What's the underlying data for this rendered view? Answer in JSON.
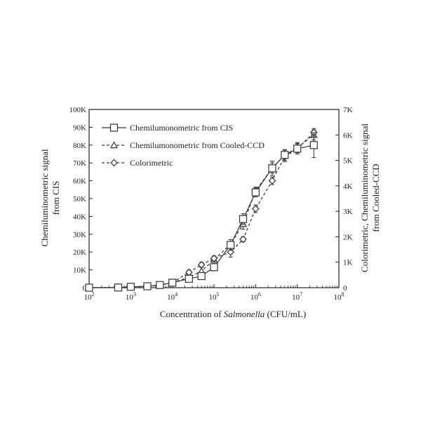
{
  "chart_data": {
    "type": "line",
    "xlabel_prefix": "Concentration of ",
    "xlabel_italic": "Salmonella",
    "xlabel_suffix": " (CFU/mL)",
    "ylabel_left_line1": "Chemiluminometric signal",
    "ylabel_left_line2": "from CIS",
    "ylabel_right_line1": "Colorimetric, Chemiluminometric signal",
    "ylabel_right_line2": "from Cooled-CCD",
    "x_scale": "log",
    "xlim": [
      100,
      100000000
    ],
    "x_ticks": [
      {
        "value": 100,
        "base": "10",
        "exp": "2"
      },
      {
        "value": 1000,
        "base": "10",
        "exp": "3"
      },
      {
        "value": 10000,
        "base": "10",
        "exp": "4"
      },
      {
        "value": 100000,
        "base": "10",
        "exp": "5"
      },
      {
        "value": 1000000,
        "base": "10",
        "exp": "6"
      },
      {
        "value": 10000000,
        "base": "10",
        "exp": "7"
      },
      {
        "value": 100000000,
        "base": "10",
        "exp": "8"
      }
    ],
    "ylim_left": [
      0,
      100000
    ],
    "y_left_ticks": [
      {
        "value": 0,
        "label": "0"
      },
      {
        "value": 10000,
        "label": "10K"
      },
      {
        "value": 20000,
        "label": "20K"
      },
      {
        "value": 30000,
        "label": "30K"
      },
      {
        "value": 40000,
        "label": "40K"
      },
      {
        "value": 50000,
        "label": "50K"
      },
      {
        "value": 60000,
        "label": "60K"
      },
      {
        "value": 70000,
        "label": "70K"
      },
      {
        "value": 80000,
        "label": "80K"
      },
      {
        "value": 90000,
        "label": "90K"
      },
      {
        "value": 100000,
        "label": "100K"
      }
    ],
    "ylim_right": [
      0,
      7000
    ],
    "y_right_ticks": [
      {
        "value": 0,
        "label": "0"
      },
      {
        "value": 1000,
        "label": "1K"
      },
      {
        "value": 2000,
        "label": "2K"
      },
      {
        "value": 3000,
        "label": "3K"
      },
      {
        "value": 4000,
        "label": "4K"
      },
      {
        "value": 5000,
        "label": "5K"
      },
      {
        "value": 6000,
        "label": "6K"
      },
      {
        "value": 7000,
        "label": "7K"
      }
    ],
    "legend_position": "top-left",
    "grid": false,
    "series": [
      {
        "name": "Chemilumonometric from CIS",
        "axis": "left",
        "marker": "square",
        "line": "solid",
        "color": "#333333",
        "x": [
          100,
          500,
          1000,
          2500,
          5000,
          10000,
          25000,
          50000,
          100000,
          250000,
          500000,
          1000000,
          2500000,
          5000000,
          10000000,
          25000000
        ],
        "y": [
          0,
          100,
          500,
          800,
          1500,
          2800,
          5000,
          6500,
          11500,
          24000,
          38500,
          53500,
          67000,
          74500,
          78000,
          80000
        ],
        "err": [
          0,
          0,
          0,
          0,
          0,
          500,
          1000,
          1500,
          2000,
          3000,
          3000,
          2500,
          4000,
          3000,
          3000,
          7000
        ]
      },
      {
        "name": "Chemilumonometric from Cooled-CCD",
        "axis": "right",
        "marker": "triangle",
        "line": "dashed",
        "color": "#333333",
        "x": [
          100,
          500,
          1000,
          2500,
          5000,
          10000,
          25000,
          50000,
          100000,
          250000,
          500000,
          1000000,
          2500000,
          5000000,
          10000000,
          25000000
        ],
        "y": [
          0,
          10,
          30,
          50,
          100,
          200,
          400,
          650,
          1100,
          1700,
          2500,
          3800,
          4700,
          5200,
          5500,
          6000
        ],
        "err": [
          0,
          0,
          0,
          0,
          0,
          0,
          100,
          150,
          100,
          100,
          200,
          150,
          200,
          200,
          200,
          200
        ]
      },
      {
        "name": "Colorimetric",
        "axis": "right",
        "marker": "diamond",
        "line": "dashed",
        "color": "#333333",
        "x": [
          100,
          500,
          1000,
          2500,
          5000,
          10000,
          25000,
          50000,
          100000,
          250000,
          500000,
          1000000,
          2500000,
          5000000,
          10000000,
          25000000
        ],
        "y": [
          0,
          10,
          30,
          50,
          100,
          200,
          600,
          900,
          1150,
          1400,
          1900,
          3100,
          4200,
          5150,
          5450,
          6100
        ],
        "err": [
          0,
          0,
          0,
          0,
          0,
          0,
          100,
          100,
          100,
          200,
          100,
          150,
          150,
          200,
          200,
          150
        ]
      }
    ]
  }
}
